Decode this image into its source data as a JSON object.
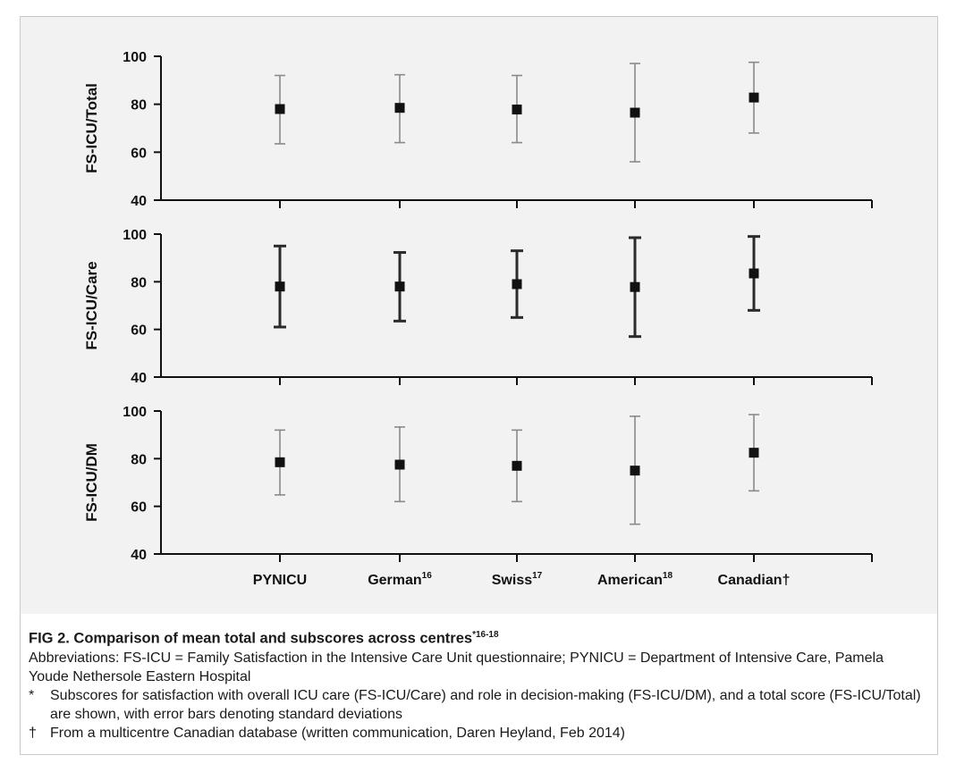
{
  "chart_data": {
    "type": "scatter",
    "categories": [
      "PYNICU",
      "German",
      "Swiss",
      "American",
      "Canadian†"
    ],
    "category_superscripts": [
      "",
      "16",
      "17",
      "18",
      ""
    ],
    "panels": [
      {
        "ylabel": "FS-ICU/Total",
        "ylim": [
          40,
          100
        ],
        "yticks": [
          100,
          80,
          60,
          40
        ],
        "error_bar_style": "thin-gray",
        "means": [
          78,
          78.5,
          77.8,
          76.5,
          82.8
        ],
        "upper": [
          92,
          92.3,
          92,
          97,
          97.5
        ],
        "lower": [
          63.5,
          64,
          64,
          56,
          68
        ]
      },
      {
        "ylabel": "FS-ICU/Care",
        "ylim": [
          40,
          100
        ],
        "yticks": [
          100,
          80,
          60,
          40
        ],
        "error_bar_style": "thick-dark",
        "means": [
          78,
          78,
          79,
          77.8,
          83.5
        ],
        "upper": [
          95,
          92.3,
          93,
          98.5,
          99
        ],
        "lower": [
          61,
          63.5,
          65,
          57,
          68
        ]
      },
      {
        "ylabel": "FS-ICU/DM",
        "ylim": [
          40,
          100
        ],
        "yticks": [
          100,
          80,
          60,
          40
        ],
        "error_bar_style": "thin-gray",
        "means": [
          78.5,
          77.5,
          77,
          75,
          82.5
        ],
        "upper": [
          92,
          93.3,
          92,
          97.8,
          98.5
        ],
        "lower": [
          64.8,
          62,
          62,
          52.5,
          66.5
        ]
      }
    ],
    "colors": {
      "marker": "#111111",
      "thin_bar": "#8a8a8a",
      "thick_bar": "#2b2b2b",
      "background": "#f2f2f2",
      "axis": "#111111"
    }
  },
  "caption": {
    "title": "FIG 2.  Comparison of mean total and subscores across centres",
    "title_superscript": "*16-18",
    "abbreviations": "Abbreviations: FS-ICU = Family Satisfaction in the Intensive Care Unit questionnaire; PYNICU = Department of Intensive Care, Pamela Youde Nethersole Eastern Hospital",
    "notes": [
      {
        "mark": "*",
        "text": "Subscores for satisfaction with overall ICU care (FS-ICU/Care) and role in decision-making (FS-ICU/DM), and a total score (FS-ICU/Total) are shown, with error bars denoting standard deviations"
      },
      {
        "mark": "†",
        "text": "From a multicentre Canadian database  (written communication, Daren Heyland, Feb 2014)"
      }
    ]
  }
}
